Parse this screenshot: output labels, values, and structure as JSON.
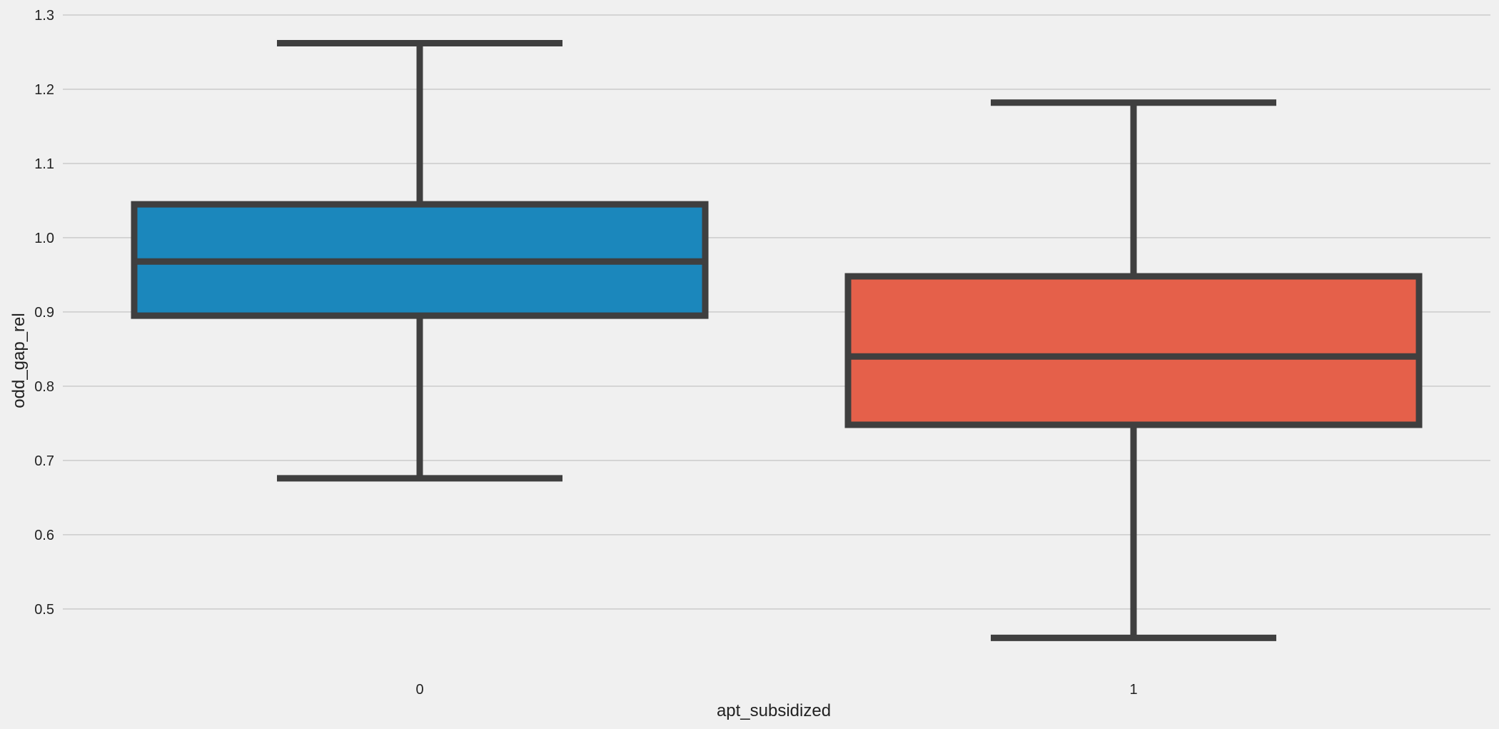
{
  "chart_data": {
    "type": "box",
    "xlabel": "apt_subsidized",
    "ylabel": "odd_gap_rel",
    "categories": [
      "0",
      "1"
    ],
    "ylim": [
      0.42,
      1.3
    ],
    "yticks": [
      0.5,
      0.6,
      0.7,
      0.8,
      0.9,
      1.0,
      1.1,
      1.2,
      1.3
    ],
    "ytick_labels": [
      "0.5",
      "0.6",
      "0.7",
      "0.8",
      "0.9",
      "1.0",
      "1.1",
      "1.2",
      "1.3"
    ],
    "grid": "horizontal",
    "boxes": [
      {
        "category": "0",
        "whisker_low": 0.676,
        "q1": 0.895,
        "median": 0.968,
        "q3": 1.045,
        "whisker_high": 1.262,
        "color": "#1b87bc"
      },
      {
        "category": "1",
        "whisker_low": 0.461,
        "q1": 0.748,
        "median": 0.84,
        "q3": 0.948,
        "whisker_high": 1.182,
        "color": "#e5604a"
      }
    ],
    "line_color": "#3f3f3f",
    "background": "#f0f0f0"
  }
}
